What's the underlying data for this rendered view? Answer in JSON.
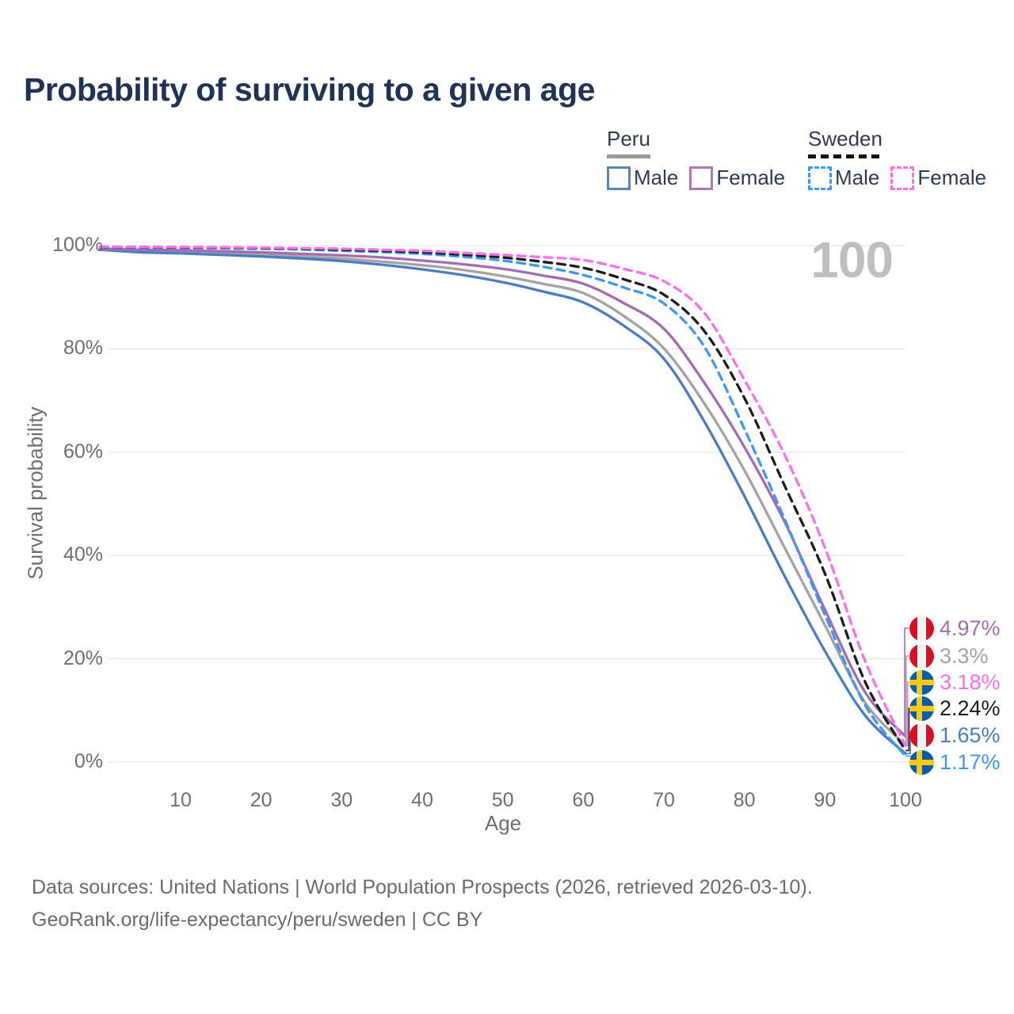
{
  "title": "Probability of surviving to a given age",
  "age_indicator": "100",
  "legend": {
    "peru": {
      "label": "Peru",
      "male_label": "Male",
      "female_label": "Female"
    },
    "sweden": {
      "label": "Sweden",
      "male_label": "Male",
      "female_label": "Female"
    }
  },
  "colors": {
    "peru_male": "#4a7cc4",
    "peru_female": "#a46cb0",
    "peru_both": "#a3a3a3",
    "sweden_male": "#3e97f4",
    "sweden_female": "#fb6ff0",
    "sweden_both": "#1c1c1c",
    "grid": "#e8e8e8",
    "tick_text": "#6e6e6e",
    "title_text": "#203354",
    "age_indicator_text": "#bfbfbf"
  },
  "chart_data": {
    "type": "line",
    "title": "Probability of surviving to a given age",
    "xlabel": "Age",
    "ylabel": "Survival probability",
    "xlim": [
      0,
      100
    ],
    "ylim": [
      0,
      100
    ],
    "grid": "horizontal",
    "legend_position": "top-right",
    "x_ticks": [
      10,
      20,
      30,
      40,
      50,
      60,
      70,
      80,
      90,
      100
    ],
    "y_ticks": [
      {
        "value": 0,
        "label": "0%"
      },
      {
        "value": 20,
        "label": "20%"
      },
      {
        "value": 40,
        "label": "40%"
      },
      {
        "value": 60,
        "label": "60%"
      },
      {
        "value": 80,
        "label": "80%"
      },
      {
        "value": 100,
        "label": "100%"
      }
    ],
    "ages": [
      0,
      5,
      10,
      15,
      20,
      25,
      30,
      35,
      40,
      45,
      50,
      55,
      60,
      65,
      70,
      75,
      80,
      85,
      90,
      95,
      100
    ],
    "series": [
      {
        "id": "peru_female",
        "name": "Peru Female",
        "country": "Peru",
        "sex": "Female",
        "color": "#a46cb0",
        "dashed": false,
        "end_label": "4.97%",
        "values": [
          99.4,
          99.2,
          99.1,
          98.9,
          98.7,
          98.4,
          98.1,
          97.7,
          97.1,
          96.4,
          95.5,
          94.2,
          92.6,
          88.9,
          83.9,
          73.5,
          61.0,
          46.5,
          29.5,
          13.5,
          4.97
        ]
      },
      {
        "id": "peru_both",
        "name": "Peru (both sexes)",
        "country": "Peru",
        "sex": "Both",
        "color": "#a3a3a3",
        "dashed": false,
        "end_label": "3.3%",
        "values": [
          99.3,
          98.9,
          98.7,
          98.5,
          98.2,
          97.9,
          97.5,
          96.9,
          96.2,
          95.3,
          94.1,
          92.6,
          90.8,
          86.4,
          80.1,
          69.5,
          56.5,
          41.5,
          26.5,
          11.5,
          3.3
        ]
      },
      {
        "id": "sweden_female",
        "name": "Sweden Female",
        "country": "Sweden",
        "sex": "Female",
        "color": "#fb6ff0",
        "dashed": true,
        "end_label": "3.18%",
        "values": [
          99.8,
          99.75,
          99.72,
          99.68,
          99.6,
          99.5,
          99.4,
          99.2,
          99.0,
          98.6,
          98.2,
          97.75,
          97.2,
          95.5,
          93.1,
          87.0,
          74.0,
          59.5,
          41.5,
          19.5,
          3.18
        ]
      },
      {
        "id": "sweden_both",
        "name": "Sweden (both sexes)",
        "country": "Sweden",
        "sex": "Both",
        "color": "#1c1c1c",
        "dashed": true,
        "end_label": "2.24%",
        "values": [
          99.75,
          99.7,
          99.65,
          99.6,
          99.5,
          99.4,
          99.2,
          99.0,
          98.7,
          98.25,
          97.7,
          96.85,
          95.7,
          93.5,
          90.5,
          83.5,
          70.5,
          53.5,
          36.5,
          15.5,
          2.24
        ]
      },
      {
        "id": "peru_male",
        "name": "Peru Male",
        "country": "Peru",
        "sex": "Male",
        "color": "#4a7cc4",
        "dashed": false,
        "end_label": "1.65%",
        "values": [
          99.2,
          98.7,
          98.5,
          98.2,
          97.9,
          97.5,
          97.0,
          96.3,
          95.4,
          94.3,
          92.9,
          91.1,
          89.0,
          84.5,
          78.1,
          66.0,
          51.5,
          36.0,
          21.5,
          9.0,
          1.65
        ]
      },
      {
        "id": "sweden_male",
        "name": "Sweden Male",
        "country": "Sweden",
        "sex": "Male",
        "color": "#3e97f4",
        "dashed": true,
        "end_label": "1.17%",
        "values": [
          99.7,
          99.6,
          99.55,
          99.5,
          99.4,
          99.25,
          99.0,
          98.75,
          98.4,
          97.85,
          97.1,
          95.9,
          94.3,
          91.9,
          88.8,
          80.5,
          64.5,
          47.0,
          28.5,
          11.0,
          1.17
        ]
      }
    ]
  },
  "footer": {
    "line1": "Data sources: United Nations | World Population Prospects (2026, retrieved 2026-03-10).",
    "line2": "GeoRank.org/life-expectancy/peru/sweden | CC BY"
  }
}
